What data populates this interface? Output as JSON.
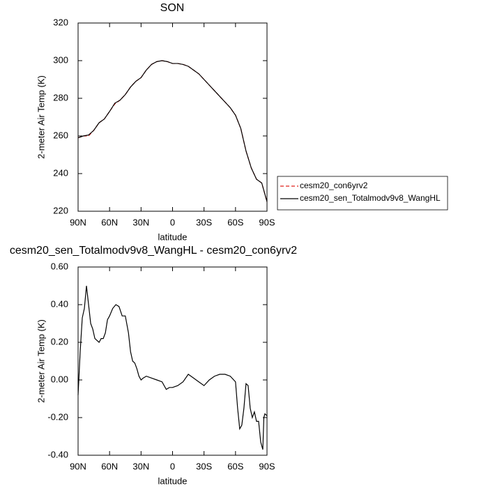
{
  "chart_data": [
    {
      "type": "line",
      "title": "SON",
      "xlabel": "latitude",
      "ylabel": "2-meter Air Temp (K)",
      "x": [
        90,
        85,
        80,
        75,
        70,
        65,
        60,
        55,
        50,
        45,
        40,
        35,
        30,
        25,
        20,
        15,
        10,
        5,
        0,
        -5,
        -10,
        -15,
        -20,
        -25,
        -30,
        -35,
        -40,
        -45,
        -50,
        -55,
        -60,
        -65,
        -70,
        -75,
        -80,
        -85,
        -90
      ],
      "series": [
        {
          "name": "cesm20_con6yrv2",
          "color": "#e0201b",
          "linestyle": "dashed",
          "values": [
            259,
            260,
            260,
            263,
            267,
            269,
            273,
            277,
            279,
            282,
            286,
            289,
            291,
            295,
            298,
            299.5,
            300,
            299.5,
            298.5,
            298.5,
            298,
            297,
            295,
            293,
            290,
            287,
            284,
            281,
            278,
            275,
            271,
            264,
            252,
            243,
            237,
            235,
            225
          ]
        },
        {
          "name": "cesm20_sen_Totalmodv9v8_WangHL",
          "color": "#000000",
          "linestyle": "solid",
          "values": [
            259,
            260,
            260.5,
            263,
            267,
            269,
            273,
            277.4,
            279,
            282,
            286,
            289,
            291,
            295,
            298,
            299.5,
            300,
            299.5,
            298.5,
            298.5,
            298,
            297,
            295,
            293,
            290,
            287,
            284,
            281,
            278,
            275,
            271,
            264,
            252,
            243,
            237,
            235,
            225
          ]
        }
      ],
      "xlim": [
        90,
        -90
      ],
      "xticks": [
        {
          "value": 90,
          "label": "90N"
        },
        {
          "value": 60,
          "label": "60N"
        },
        {
          "value": 30,
          "label": "30N"
        },
        0,
        {
          "value": -30,
          "label": "30S"
        },
        {
          "value": -60,
          "label": "60S"
        },
        {
          "value": -90,
          "label": "90S"
        }
      ],
      "ylim": [
        220,
        320
      ],
      "yticks": [
        220,
        240,
        260,
        280,
        300,
        320
      ],
      "legend": "right"
    },
    {
      "type": "line",
      "title": "cesm20_sen_Totalmodv9v8_WangHL - cesm20_con6yrv2",
      "xlabel": "latitude",
      "ylabel": "2-meter Air Temp (K)",
      "x": [
        90,
        88,
        86,
        84,
        82,
        80,
        78,
        76,
        74,
        72,
        70,
        68,
        66,
        64,
        62,
        60,
        57,
        54,
        51,
        48,
        45,
        42,
        40,
        38,
        36,
        34,
        32,
        30,
        28,
        25,
        20,
        15,
        10,
        6,
        3,
        0,
        -5,
        -10,
        -15,
        -20,
        -25,
        -30,
        -35,
        -40,
        -45,
        -50,
        -55,
        -60,
        -62,
        -64,
        -66,
        -68,
        -70,
        -72,
        -74,
        -76,
        -78,
        -80,
        -82,
        -84,
        -86,
        -87,
        -88,
        -90
      ],
      "series": [
        {
          "name": "cesm20_sen_Totalmodv9v8_WangHL - cesm20_con6yrv2",
          "color": "#000000",
          "linestyle": "solid",
          "values": [
            -0.08,
            0.15,
            0.33,
            0.38,
            0.5,
            0.4,
            0.3,
            0.27,
            0.22,
            0.21,
            0.2,
            0.22,
            0.22,
            0.25,
            0.32,
            0.34,
            0.38,
            0.4,
            0.39,
            0.34,
            0.34,
            0.25,
            0.15,
            0.1,
            0.09,
            0.06,
            0.02,
            0,
            0.01,
            0.02,
            0.01,
            0,
            -0.01,
            -0.05,
            -0.04,
            -0.04,
            -0.03,
            -0.01,
            0.03,
            0.01,
            -0.01,
            -0.03,
            0,
            0.02,
            0.03,
            0.03,
            0.02,
            -0.01,
            -0.15,
            -0.26,
            -0.24,
            -0.15,
            -0.02,
            -0.03,
            -0.15,
            -0.2,
            -0.17,
            -0.22,
            -0.22,
            -0.33,
            -0.37,
            -0.2,
            -0.18,
            -0.19
          ]
        }
      ],
      "xlim": [
        90,
        -90
      ],
      "xticks": [
        {
          "value": 90,
          "label": "90N"
        },
        {
          "value": 60,
          "label": "60N"
        },
        {
          "value": 30,
          "label": "30N"
        },
        0,
        {
          "value": -30,
          "label": "30S"
        },
        {
          "value": -60,
          "label": "60S"
        },
        {
          "value": -90,
          "label": "90S"
        }
      ],
      "ylim": [
        -0.4,
        0.6
      ],
      "yticks": [
        {
          "value": -0.4,
          "label": "-0.40"
        },
        {
          "value": -0.2,
          "label": "-0.20"
        },
        {
          "value": 0,
          "label": "0.00"
        },
        {
          "value": 0.2,
          "label": "0.20"
        },
        {
          "value": 0.4,
          "label": "0.40"
        },
        {
          "value": 0.6,
          "label": "0.60"
        }
      ]
    }
  ]
}
